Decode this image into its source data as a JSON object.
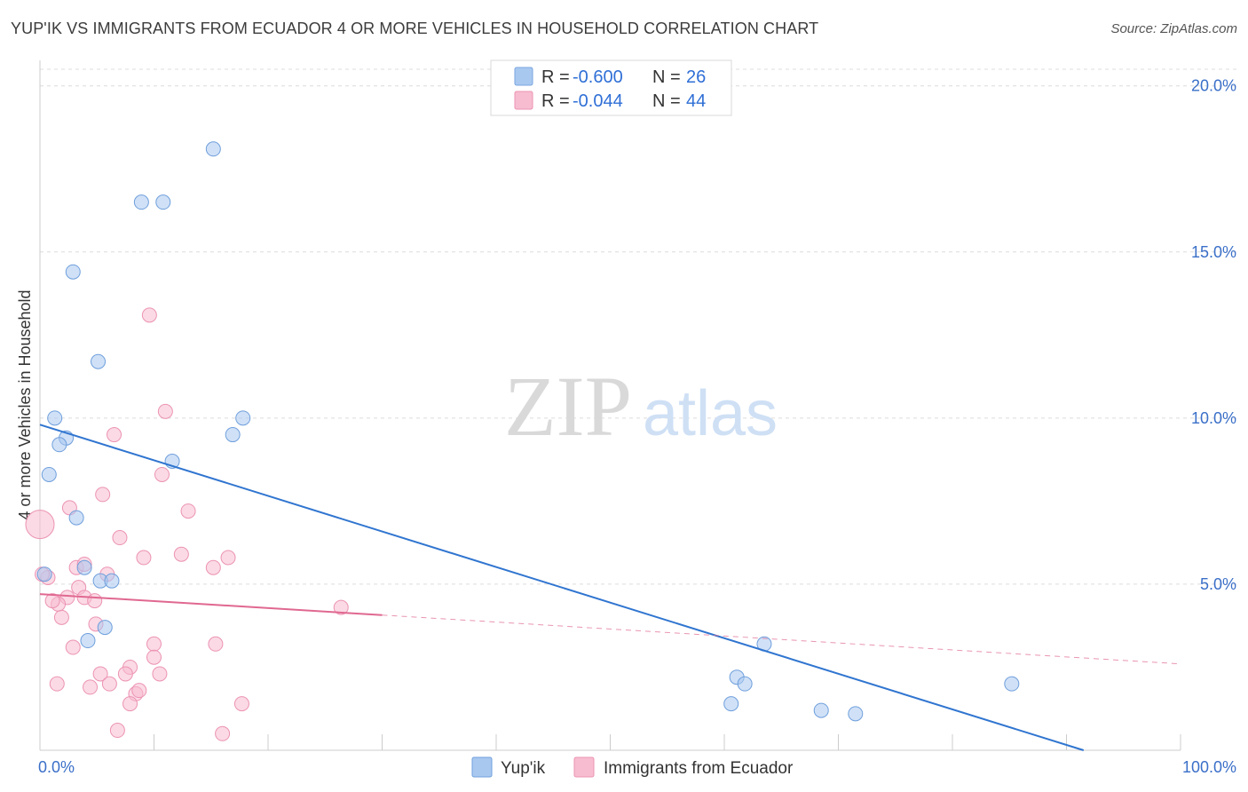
{
  "title": "YUP'IK VS IMMIGRANTS FROM ECUADOR 4 OR MORE VEHICLES IN HOUSEHOLD CORRELATION CHART",
  "source": "Source: ZipAtlas.com",
  "watermark": {
    "zip": "ZIP",
    "atlas": "atlas"
  },
  "chart_data": {
    "type": "scatter",
    "ylabel": "4 or more Vehicles in Household",
    "xlabel": "",
    "xlim": [
      0,
      100
    ],
    "ylim": [
      0,
      20.5
    ],
    "x_tick_labels": [
      {
        "value": 0,
        "label": "0.0%"
      },
      {
        "value": 100,
        "label": "100.0%"
      }
    ],
    "y_ticks": [
      {
        "value": 5,
        "label": "5.0%"
      },
      {
        "value": 10,
        "label": "10.0%"
      },
      {
        "value": 15,
        "label": "15.0%"
      },
      {
        "value": 20,
        "label": "20.0%"
      }
    ],
    "x_minor_ticks": [
      10,
      20,
      30,
      40,
      50,
      60,
      70,
      80,
      90,
      100
    ],
    "legend": {
      "entries": [
        {
          "r_label": "R =",
          "r_value": "-0.600",
          "n_label": "N =",
          "n_value": "26",
          "color": "#a9c8f0",
          "stroke": "#7aa6e0"
        },
        {
          "r_label": "R =",
          "r_value": "-0.044",
          "n_label": "N =",
          "n_value": "44",
          "color": "#f7bcd0",
          "stroke": "#ec93b3"
        }
      ]
    },
    "series": [
      {
        "name": "Yup'ik",
        "color": "#a9c8f0",
        "stroke": "#6f9fdc",
        "line_color": "#3075d0",
        "trend": {
          "x0": 0,
          "y0": 9.8,
          "x1": 91.5,
          "y1": 0,
          "dash_from": null
        },
        "points": [
          [
            15.2,
            18.1
          ],
          [
            8.9,
            16.5
          ],
          [
            10.8,
            16.5
          ],
          [
            2.9,
            14.4
          ],
          [
            5.1,
            11.7
          ],
          [
            1.3,
            10.0
          ],
          [
            17.8,
            10.0
          ],
          [
            2.3,
            9.4
          ],
          [
            1.7,
            9.2
          ],
          [
            16.9,
            9.5
          ],
          [
            11.6,
            8.7
          ],
          [
            0.8,
            8.3
          ],
          [
            3.2,
            7.0
          ],
          [
            3.9,
            5.5
          ],
          [
            5.3,
            5.1
          ],
          [
            6.3,
            5.1
          ],
          [
            0.4,
            5.3
          ],
          [
            4.2,
            3.3
          ],
          [
            5.7,
            3.7
          ],
          [
            63.5,
            3.2
          ],
          [
            61.1,
            2.2
          ],
          [
            61.8,
            2.0
          ],
          [
            60.6,
            1.4
          ],
          [
            68.5,
            1.2
          ],
          [
            71.5,
            1.1
          ],
          [
            85.2,
            2.0
          ]
        ]
      },
      {
        "name": "Immigrants from Ecuador",
        "color": "#f7bcd0",
        "stroke": "#ec93b3",
        "line_color": "#e06890",
        "trend": {
          "x0": 0,
          "y0": 4.7,
          "x1": 100,
          "y1": 2.6,
          "solid_until": 30
        },
        "points": [
          [
            9.6,
            13.1
          ],
          [
            11.0,
            10.2
          ],
          [
            6.5,
            9.5
          ],
          [
            10.7,
            8.3
          ],
          [
            5.5,
            7.7
          ],
          [
            2.6,
            7.3
          ],
          [
            13.0,
            7.2
          ],
          [
            7.0,
            6.4
          ],
          [
            12.4,
            5.9
          ],
          [
            9.1,
            5.8
          ],
          [
            16.5,
            5.8
          ],
          [
            15.2,
            5.5
          ],
          [
            3.2,
            5.5
          ],
          [
            3.9,
            5.6
          ],
          [
            5.9,
            5.3
          ],
          [
            0.7,
            5.2
          ],
          [
            0.2,
            5.3
          ],
          [
            3.4,
            4.9
          ],
          [
            3.9,
            4.6
          ],
          [
            2.4,
            4.6
          ],
          [
            4.8,
            4.5
          ],
          [
            1.6,
            4.4
          ],
          [
            1.1,
            4.5
          ],
          [
            1.9,
            4.0
          ],
          [
            26.4,
            4.3
          ],
          [
            4.9,
            3.8
          ],
          [
            10.0,
            3.2
          ],
          [
            15.4,
            3.2
          ],
          [
            2.9,
            3.1
          ],
          [
            7.9,
            2.5
          ],
          [
            10.0,
            2.8
          ],
          [
            7.5,
            2.3
          ],
          [
            5.3,
            2.3
          ],
          [
            10.5,
            2.3
          ],
          [
            1.5,
            2.0
          ],
          [
            4.4,
            1.9
          ],
          [
            6.1,
            2.0
          ],
          [
            8.4,
            1.7
          ],
          [
            8.7,
            1.8
          ],
          [
            7.9,
            1.4
          ],
          [
            17.7,
            1.4
          ],
          [
            6.8,
            0.6
          ],
          [
            16.0,
            0.5
          ],
          [
            0.0,
            6.8
          ]
        ]
      }
    ]
  }
}
